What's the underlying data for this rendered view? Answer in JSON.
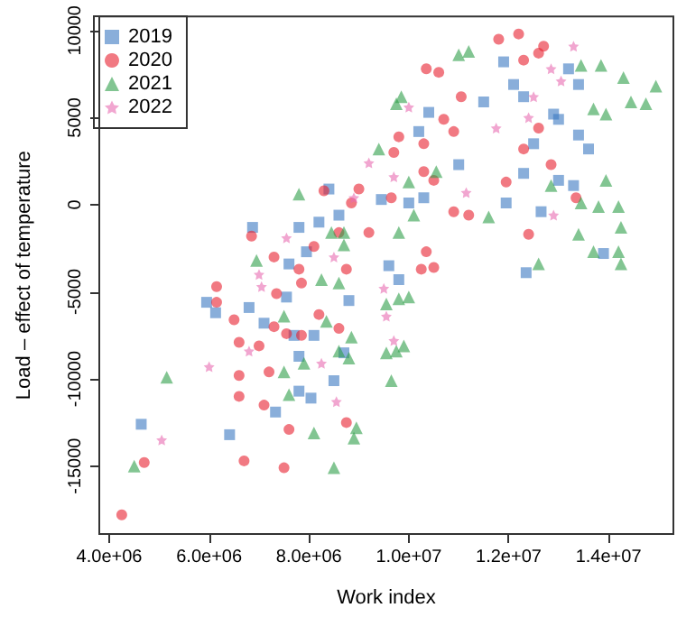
{
  "chart_data": {
    "type": "scatter",
    "xlabel": "Work index",
    "ylabel": "Load – effect of temperature",
    "xlim": [
      3800000,
      15300000
    ],
    "ylim": [
      -18900,
      10800
    ],
    "xticks": [
      {
        "value": 4000000,
        "label": "4.0e+06"
      },
      {
        "value": 6000000,
        "label": "6.0e+06"
      },
      {
        "value": 8000000,
        "label": "8.0e+06"
      },
      {
        "value": 10000000,
        "label": "1.0e+07"
      },
      {
        "value": 12000000,
        "label": "1.2e+07"
      },
      {
        "value": 14000000,
        "label": "1.4e+07"
      }
    ],
    "yticks": [
      -15000,
      -10000,
      -5000,
      0,
      5000,
      10000
    ],
    "grid": false,
    "legend": "top left",
    "series": [
      {
        "name": "2019",
        "color": "#3a78c2",
        "marker": "square",
        "x": [
          4640000,
          6410000,
          5950000,
          6130000,
          6800000,
          7330000,
          7800000,
          8040000,
          8500000,
          7100000,
          7700000,
          8100000,
          7800000,
          8700000,
          8800000,
          7550000,
          6870000,
          7800000,
          8400000,
          8600000,
          8200000,
          7950000,
          7600000,
          11900000,
          12100000,
          12300000,
          10400000,
          10200000,
          13200000,
          13400000,
          13000000,
          13400000,
          13600000,
          11000000,
          12300000,
          13000000,
          11950000,
          12650000,
          13900000,
          12350000,
          10300000,
          10000000,
          9450000,
          9600000,
          9800000,
          13300000,
          12900000,
          11500000,
          12500000
        ],
        "values": [
          -12600,
          -13200,
          -5600,
          -6200,
          -5900,
          -11900,
          -10700,
          -11100,
          -10100,
          -6800,
          -7500,
          -7500,
          -8700,
          -8500,
          -5500,
          -5300,
          -1300,
          -1300,
          900,
          -600,
          -1000,
          -2700,
          -3400,
          8200,
          6900,
          6200,
          5300,
          4200,
          7800,
          6900,
          4900,
          4000,
          3200,
          2300,
          1800,
          1400,
          100,
          -400,
          -2800,
          -3900,
          400,
          100,
          300,
          -3500,
          -4300,
          1100,
          5200,
          5900,
          3500
        ]
      },
      {
        "name": "2020",
        "color": "#e8202f",
        "marker": "circle",
        "x": [
          4250000,
          4700000,
          6700000,
          7500000,
          7600000,
          6150000,
          6500000,
          6600000,
          6600000,
          6600000,
          7100000,
          7200000,
          7300000,
          7350000,
          7850000,
          8200000,
          8750000,
          7000000,
          7550000,
          7850000,
          6850000,
          7300000,
          6150000,
          8300000,
          9000000,
          8850000,
          7800000,
          8100000,
          8600000,
          8750000,
          12200000,
          11800000,
          12700000,
          12600000,
          12300000,
          10350000,
          10600000,
          11050000,
          10700000,
          10900000,
          10300000,
          9800000,
          9700000,
          10300000,
          10500000,
          10900000,
          11200000,
          11950000,
          12300000,
          12600000,
          12850000,
          12400000,
          10250000,
          10500000,
          10350000,
          9200000,
          9650000,
          13350000,
          8600000
        ],
        "values": [
          -17800,
          -14800,
          -14700,
          -15100,
          -12900,
          -5600,
          -6600,
          -7900,
          -9800,
          -11000,
          -11500,
          -9600,
          -7000,
          -5100,
          -4500,
          -6300,
          -12500,
          -8100,
          -7400,
          -7500,
          -1800,
          -3000,
          -4700,
          800,
          900,
          100,
          -3700,
          -2400,
          -1600,
          -3700,
          9800,
          9500,
          9100,
          8700,
          8300,
          7800,
          7600,
          6200,
          4900,
          4200,
          3500,
          3900,
          3000,
          1900,
          1400,
          -400,
          -600,
          1300,
          3200,
          4400,
          2300,
          -1700,
          -3700,
          -3600,
          -2700,
          -1600,
          400,
          400,
          -7100
        ]
      },
      {
        "name": "2021",
        "color": "#2e9e4a",
        "marker": "triangle",
        "x": [
          4500000,
          5150000,
          8100000,
          8500000,
          8950000,
          7600000,
          7900000,
          7500000,
          8600000,
          8800000,
          8850000,
          8350000,
          7500000,
          8600000,
          7800000,
          6950000,
          8700000,
          8450000,
          8250000,
          11000000,
          11200000,
          13450000,
          13850000,
          14300000,
          14950000,
          14450000,
          14750000,
          9850000,
          9750000,
          13950000,
          13700000,
          9400000,
          10550000,
          10000000,
          12850000,
          13950000,
          13450000,
          13800000,
          14200000,
          11600000,
          13400000,
          14250000,
          13700000,
          14200000,
          14250000,
          12600000,
          9800000,
          10100000,
          8700000,
          9550000,
          9800000,
          10000000,
          9550000,
          9750000,
          9900000,
          9650000,
          8900000
        ],
        "values": [
          -15000,
          -9900,
          -13100,
          -15100,
          -12800,
          -10900,
          -9100,
          -9600,
          -8400,
          -8800,
          -7600,
          -6700,
          -6400,
          -4500,
          600,
          -3200,
          -2300,
          -1600,
          -4300,
          8600,
          8800,
          8000,
          8000,
          7300,
          6800,
          5900,
          5800,
          6200,
          5800,
          5200,
          5500,
          3200,
          1900,
          1300,
          1100,
          1400,
          100,
          -100,
          -100,
          -700,
          -1700,
          -1300,
          -2700,
          -2700,
          -3400,
          -3400,
          -1600,
          -600,
          -1600,
          -5700,
          -5400,
          -5300,
          -8500,
          -8400,
          -8100,
          -10100,
          -13400
        ]
      },
      {
        "name": "2022",
        "color": "#e86ab0",
        "marker": "star",
        "x": [
          5050000,
          6000000,
          8550000,
          6800000,
          7050000,
          8250000,
          7550000,
          7000000,
          8900000,
          9200000,
          8500000,
          13300000,
          12850000,
          13050000,
          12500000,
          10000000,
          11750000,
          9700000,
          11150000,
          12900000,
          12400000,
          9500000,
          9550000,
          9700000
        ],
        "values": [
          -13500,
          -9300,
          -11300,
          -8400,
          -4700,
          -9100,
          -1900,
          -4000,
          400,
          2400,
          -3000,
          9100,
          7800,
          7100,
          6200,
          5600,
          4400,
          1600,
          700,
          -600,
          5000,
          -4800,
          -6400,
          -7800
        ]
      }
    ]
  }
}
